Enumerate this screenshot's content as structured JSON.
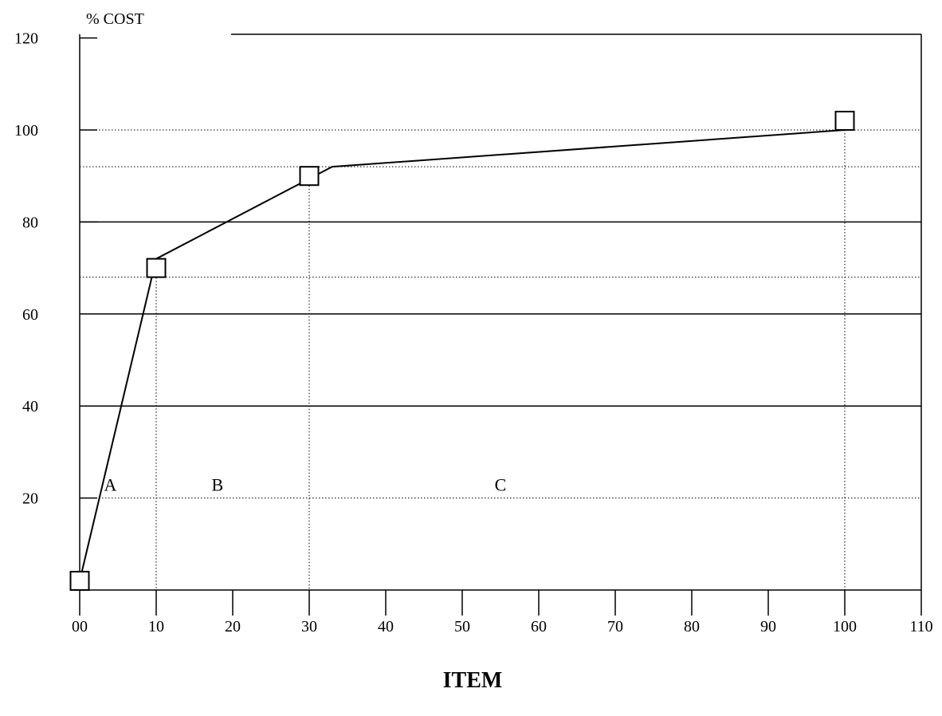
{
  "chart_data": {
    "type": "line",
    "title": "",
    "ylabel": "% COST",
    "xlabel": "ITEM",
    "xlim": [
      0,
      110
    ],
    "ylim": [
      0,
      120
    ],
    "x_ticks": [
      0,
      10,
      20,
      30,
      40,
      50,
      60,
      70,
      80,
      90,
      100,
      110
    ],
    "x_tick_labels": [
      "00",
      "10",
      "20",
      "30",
      "40",
      "50",
      "60",
      "70",
      "80",
      "90",
      "100",
      "110"
    ],
    "y_ticks": [
      20,
      40,
      60,
      80,
      100,
      120
    ],
    "y_tick_labels": [
      "20",
      "40",
      "60",
      "80",
      "100",
      "120"
    ],
    "series": [
      {
        "x": [
          0,
          10,
          33,
          100
        ],
        "y": [
          2,
          72,
          92,
          100
        ]
      }
    ],
    "markers": [
      {
        "x": 0,
        "y": 2
      },
      {
        "x": 10,
        "y": 70
      },
      {
        "x": 30,
        "y": 90
      },
      {
        "x": 100,
        "y": 102
      }
    ],
    "solid_gridlines_y": [
      40,
      60,
      80
    ],
    "dotted_gridlines_y": [
      20,
      68,
      92,
      100
    ],
    "dotted_gridlines_x": [
      10,
      30,
      100
    ],
    "zones": [
      {
        "label": "A",
        "x": 4,
        "y": 23
      },
      {
        "label": "B",
        "x": 18,
        "y": 23
      },
      {
        "label": "C",
        "x": 55,
        "y": 23
      }
    ],
    "grid": true,
    "legend": "none"
  }
}
